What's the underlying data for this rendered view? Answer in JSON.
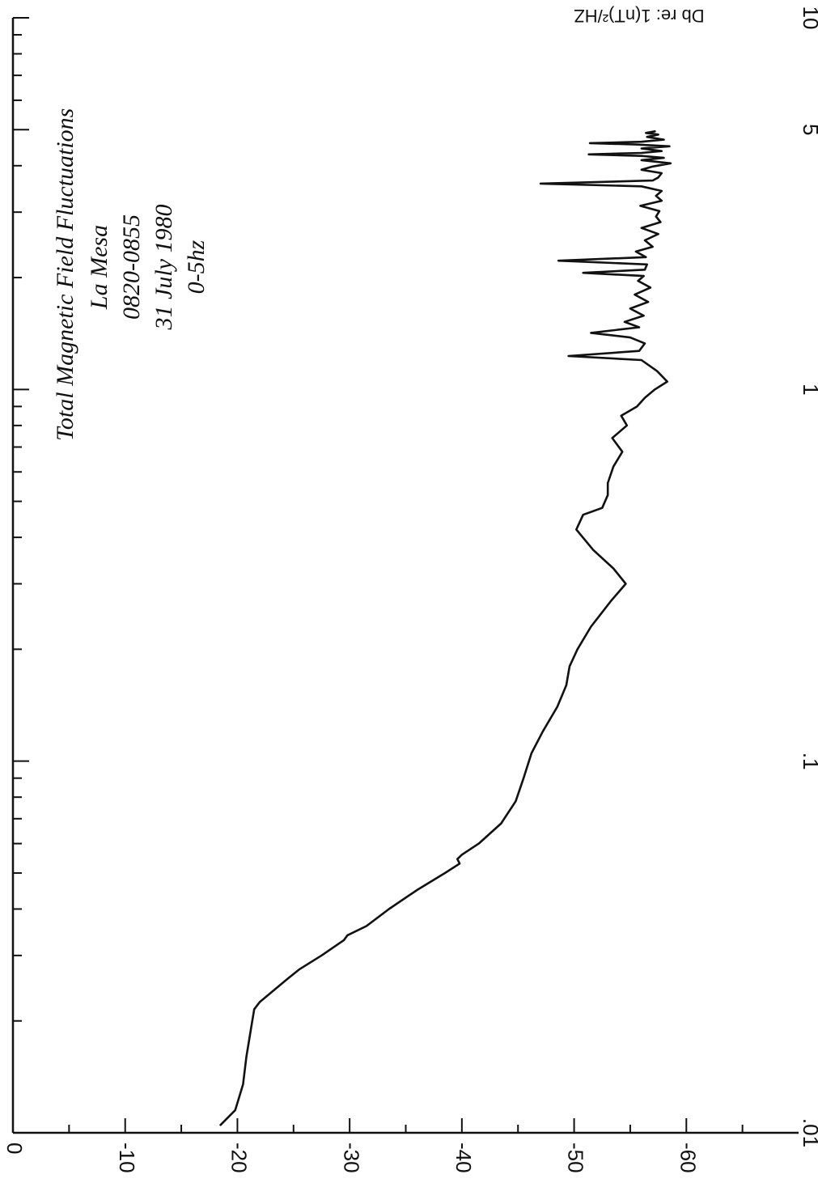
{
  "chart_data": {
    "type": "line",
    "orientation": "rotated-90-clockwise",
    "x_scale": "log",
    "xlim": [
      0.01,
      10
    ],
    "ylim": [
      0,
      -70
    ],
    "xlabel": "",
    "ylabel": "Db re: 1(nT)²/HZ",
    "x_tick_labels": [
      {
        "value": 0.01,
        "label": ".01"
      },
      {
        "value": 0.1,
        "label": ".1"
      },
      {
        "value": 1,
        "label": "1"
      },
      {
        "value": 5,
        "label": "5"
      },
      {
        "value": 10,
        "label": "10"
      }
    ],
    "y_tick_labels": [
      {
        "value": 0,
        "label": "0"
      },
      {
        "value": -10,
        "label": "-10"
      },
      {
        "value": -20,
        "label": "-20"
      },
      {
        "value": -30,
        "label": "-30"
      },
      {
        "value": -40,
        "label": "-40"
      },
      {
        "value": -50,
        "label": "-50"
      },
      {
        "value": -60,
        "label": "-60"
      }
    ],
    "annotation_lines": [
      "Total Magnetic Field Fluctuations",
      "La Mesa",
      "0820-0855",
      "31 July 1980",
      "0-5hz"
    ],
    "series": [
      {
        "points": [
          [
            0.0105,
            -18.5
          ],
          [
            0.0115,
            -19.8
          ],
          [
            0.0135,
            -20.5
          ],
          [
            0.016,
            -20.8
          ],
          [
            0.019,
            -21.2
          ],
          [
            0.0215,
            -21.5
          ],
          [
            0.0225,
            -22.0
          ],
          [
            0.026,
            -24.5
          ],
          [
            0.0275,
            -25.5
          ],
          [
            0.03,
            -27.5
          ],
          [
            0.033,
            -29.5
          ],
          [
            0.034,
            -29.8
          ],
          [
            0.036,
            -31.5
          ],
          [
            0.04,
            -33.5
          ],
          [
            0.045,
            -36.0
          ],
          [
            0.05,
            -38.5
          ],
          [
            0.053,
            -39.8
          ],
          [
            0.0545,
            -39.6
          ],
          [
            0.056,
            -40.0
          ],
          [
            0.06,
            -41.5
          ],
          [
            0.068,
            -43.5
          ],
          [
            0.078,
            -44.8
          ],
          [
            0.09,
            -45.5
          ],
          [
            0.105,
            -46.2
          ],
          [
            0.12,
            -47.2
          ],
          [
            0.14,
            -48.5
          ],
          [
            0.16,
            -49.3
          ],
          [
            0.18,
            -49.6
          ],
          [
            0.2,
            -50.3
          ],
          [
            0.23,
            -51.5
          ],
          [
            0.27,
            -53.3
          ],
          [
            0.3,
            -54.6
          ],
          [
            0.33,
            -53.5
          ],
          [
            0.37,
            -51.7
          ],
          [
            0.42,
            -50.2
          ],
          [
            0.46,
            -50.8
          ],
          [
            0.48,
            -52.5
          ],
          [
            0.52,
            -53.0
          ],
          [
            0.56,
            -53.0
          ],
          [
            0.62,
            -53.5
          ],
          [
            0.68,
            -54.3
          ],
          [
            0.74,
            -53.4
          ],
          [
            0.8,
            -54.7
          ],
          [
            0.85,
            -54.2
          ],
          [
            0.9,
            -55.6
          ],
          [
            0.95,
            -56.3
          ],
          [
            1.0,
            -57.2
          ],
          [
            1.05,
            -58.3
          ],
          [
            1.12,
            -57.4
          ],
          [
            1.2,
            -56.0
          ],
          [
            1.23,
            -49.5
          ],
          [
            1.27,
            -55.8
          ],
          [
            1.33,
            -56.3
          ],
          [
            1.38,
            -55.0
          ],
          [
            1.42,
            -51.5
          ],
          [
            1.47,
            -55.8
          ],
          [
            1.52,
            -54.5
          ],
          [
            1.58,
            -56.2
          ],
          [
            1.65,
            -55.0
          ],
          [
            1.72,
            -56.6
          ],
          [
            1.8,
            -55.4
          ],
          [
            1.88,
            -56.8
          ],
          [
            1.96,
            -55.7
          ],
          [
            2.02,
            -56.2
          ],
          [
            2.06,
            -50.8
          ],
          [
            2.1,
            -56.3
          ],
          [
            2.17,
            -56.5
          ],
          [
            2.22,
            -48.6
          ],
          [
            2.27,
            -56.4
          ],
          [
            2.35,
            -55.5
          ],
          [
            2.42,
            -57.0
          ],
          [
            2.52,
            -56.3
          ],
          [
            2.62,
            -57.5
          ],
          [
            2.72,
            -56.0
          ],
          [
            2.82,
            -57.7
          ],
          [
            2.92,
            -57.3
          ],
          [
            3.02,
            -57.6
          ],
          [
            3.12,
            -55.9
          ],
          [
            3.22,
            -57.8
          ],
          [
            3.32,
            -57.3
          ],
          [
            3.42,
            -57.8
          ],
          [
            3.52,
            -56.0
          ],
          [
            3.58,
            -47.0
          ],
          [
            3.65,
            -57.0
          ],
          [
            3.72,
            -57.5
          ],
          [
            3.82,
            -57.8
          ],
          [
            3.9,
            -56.0
          ],
          [
            3.98,
            -57.0
          ],
          [
            4.06,
            -58.6
          ],
          [
            4.14,
            -56.0
          ],
          [
            4.2,
            -58.0
          ],
          [
            4.25,
            -56.0
          ],
          [
            4.29,
            -51.3
          ],
          [
            4.33,
            -56.0
          ],
          [
            4.38,
            -57.8
          ],
          [
            4.45,
            -56.0
          ],
          [
            4.51,
            -58.5
          ],
          [
            4.56,
            -55.5
          ],
          [
            4.6,
            -51.4
          ],
          [
            4.64,
            -56.0
          ],
          [
            4.7,
            -58.0
          ],
          [
            4.78,
            -56.5
          ],
          [
            4.85,
            -57.5
          ],
          [
            4.9,
            -56.4
          ],
          [
            4.95,
            -57.2
          ]
        ]
      }
    ]
  }
}
